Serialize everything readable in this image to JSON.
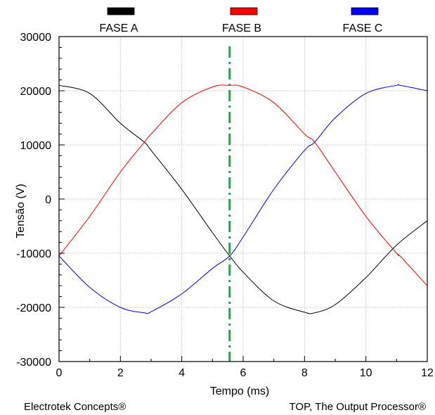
{
  "chart_data": {
    "type": "line",
    "xlabel": "Tempo (ms)",
    "ylabel": "Tensão (V)",
    "xlim": [
      0,
      12
    ],
    "ylim": [
      -30000,
      30000
    ],
    "x_ticks": [
      "0",
      "2",
      "4",
      "6",
      "8",
      "10",
      "12"
    ],
    "y_ticks": [
      "30000",
      "20000",
      "10000",
      "0",
      "-10000",
      "-20000",
      "-30000"
    ],
    "grid": true,
    "legend_position": "top",
    "marker_line": {
      "x": 5.56,
      "style": "dash-dot",
      "color": "#1aa64a"
    },
    "series": [
      {
        "name": "FASE A",
        "color": "#000000",
        "x": [
          0,
          1,
          2,
          2.78,
          3,
          4,
          5,
          5.56,
          6,
          7,
          8,
          8.33,
          9,
          10,
          11,
          12
        ],
        "y": [
          21000,
          19500,
          14000,
          10500,
          9000,
          1800,
          -6200,
          -10500,
          -13500,
          -18800,
          -20900,
          -21000,
          -19500,
          -14500,
          -8500,
          -4000
        ]
      },
      {
        "name": "FASE B",
        "color": "#ff0000",
        "x": [
          0,
          1,
          2,
          2.78,
          3,
          4,
          5,
          5.56,
          6,
          7,
          8,
          8.33,
          9,
          10,
          11,
          11.11,
          12
        ],
        "y": [
          -10500,
          -3200,
          5000,
          10500,
          12000,
          17800,
          20700,
          21000,
          20700,
          17800,
          12000,
          10500,
          5000,
          -3200,
          -10000,
          -10500,
          -16000
        ]
      },
      {
        "name": "FASE C",
        "color": "#0000ff",
        "x": [
          0,
          1,
          2,
          2.78,
          3,
          4,
          5,
          5.56,
          6,
          7,
          8,
          8.33,
          9,
          10,
          11,
          11.11,
          12
        ],
        "y": [
          -10500,
          -16300,
          -20000,
          -21000,
          -20800,
          -17500,
          -12800,
          -10500,
          -7000,
          1800,
          9000,
          10500,
          15000,
          19500,
          21000,
          21000,
          20000
        ]
      }
    ]
  },
  "footer": {
    "left": "Electrotek Concepts®",
    "right": "TOP, The Output Processor®"
  }
}
